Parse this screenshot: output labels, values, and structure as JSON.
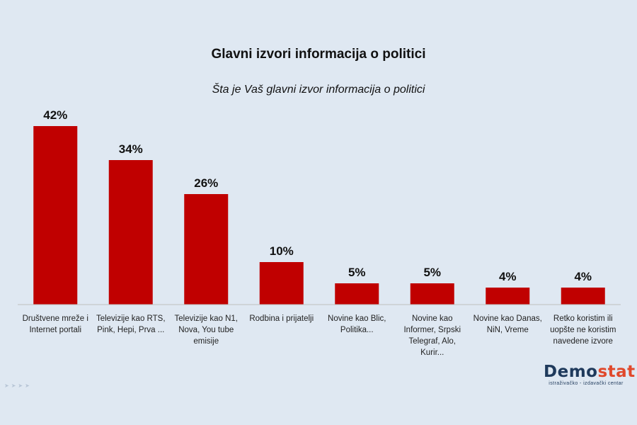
{
  "chart_data": {
    "type": "bar",
    "title": "Glavni izvori informacija o politici",
    "subtitle": "Šta je Vaš glavni izvor informacija o politici",
    "categories": [
      [
        "Društvene mreže i",
        "Internet portali"
      ],
      [
        "Televizije kao RTS,",
        "Pink, Hepi, Prva ..."
      ],
      [
        "Televizije kao  N1,",
        "Nova, You tube",
        "emisije"
      ],
      [
        "Rodbina i prijatelji"
      ],
      [
        "Novine kao Blic,",
        "Politika..."
      ],
      [
        "Novine kao",
        "Informer, Srpski",
        "Telegraf, Alo,",
        "Kurir..."
      ],
      [
        "Novine kao Danas,",
        "NiN, Vreme"
      ],
      [
        "Retko koristim ili",
        "uopšte ne koristim",
        "navedene izvore"
      ]
    ],
    "values": [
      42,
      34,
      26,
      10,
      5,
      5,
      4,
      4
    ],
    "data_labels": [
      "42%",
      "34%",
      "26%",
      "10%",
      "5%",
      "5%",
      "4%",
      "4%"
    ],
    "value_unit": "%",
    "bar_color": "#c00000",
    "grid": false,
    "legend": "none"
  },
  "branding": {
    "logo_main": "Demo",
    "logo_accent": "stat",
    "tagline": "istraživačko - izdavački  centar"
  },
  "decor": {
    "icons": [
      "arrow-icon",
      "arrow-icon",
      "arrow-icon",
      "arrow-icon"
    ]
  }
}
